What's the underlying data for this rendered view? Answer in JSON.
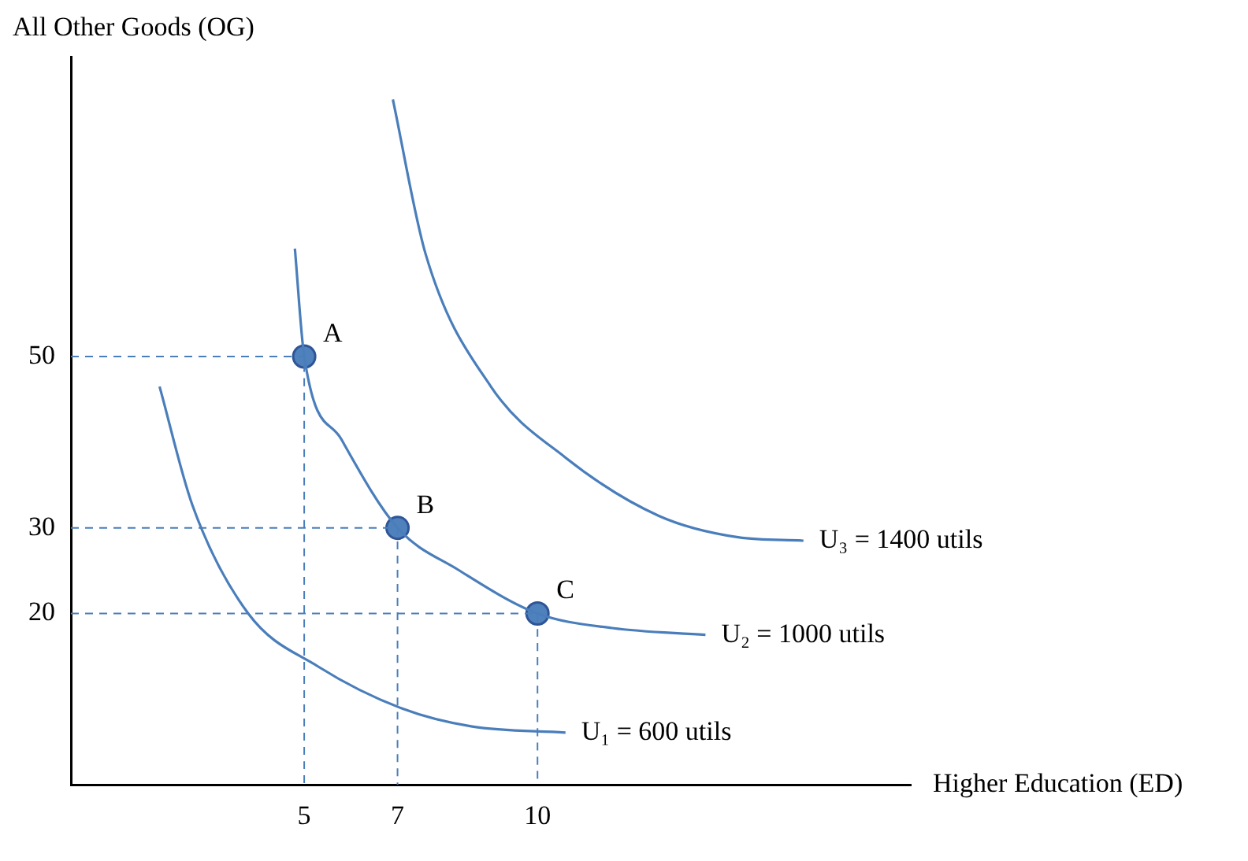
{
  "chart_data": {
    "type": "line",
    "xlabel": "Higher Education (ED)",
    "ylabel": "All Other Goods (OG)",
    "xlim": [
      0,
      18
    ],
    "xticks": [
      5,
      7,
      10
    ],
    "ylim": [
      0,
      85
    ],
    "yticks": [
      20,
      30,
      50
    ],
    "grid": false,
    "legend": false,
    "series": [
      {
        "name": "U₁ = 600 utils",
        "color": "#4a7ebb",
        "marker": "none",
        "line_style": "solid",
        "x": [
          1.9,
          2.6,
          3.8,
          5.3,
          7.1,
          8.6,
          10.6
        ],
        "values": [
          46.5,
          32.7,
          20,
          13.8,
          8.9,
          6.8,
          6.1
        ]
      },
      {
        "name": "U₂ = 1000 utils",
        "color": "#4a7ebb",
        "marker": "none",
        "line_style": "solid",
        "x": [
          4.8,
          5,
          5.8,
          7,
          8.3,
          10,
          11.6,
          13.6
        ],
        "values": [
          62.6,
          50,
          40.3,
          30,
          25.1,
          20,
          18.3,
          17.5
        ]
      },
      {
        "name": "U₃ = 1400 utils",
        "color": "#4a7ebb",
        "marker": "none",
        "line_style": "solid",
        "x": [
          6.9,
          7.6,
          9,
          10.6,
          12.6,
          14.3,
          15.7
        ],
        "values": [
          80,
          62,
          46.5,
          38.2,
          31.4,
          28.9,
          28.5
        ]
      },
      {
        "color": "#4a7ebb",
        "marker": "none",
        "line_style": "dashed",
        "x": [
          0,
          5,
          5
        ],
        "values": [
          50,
          50,
          0
        ]
      },
      {
        "color": "#4a7ebb",
        "marker": "none",
        "line_style": "dashed",
        "x": [
          0,
          7,
          7
        ],
        "values": [
          30,
          30,
          0
        ]
      },
      {
        "color": "#4a7ebb",
        "marker": "none",
        "line_style": "dashed",
        "x": [
          0,
          10,
          10
        ],
        "values": [
          20,
          20,
          0
        ]
      },
      {
        "type": "scatter",
        "color": "#4f81bd",
        "marker": "circle",
        "x": [
          5,
          7,
          10
        ],
        "values": [
          50,
          30,
          20
        ]
      }
    ],
    "annotations": [
      {
        "text": "A",
        "x": 5,
        "y": 50
      },
      {
        "text": "B",
        "x": 7,
        "y": 30
      },
      {
        "text": "C",
        "x": 10,
        "y": 20
      }
    ]
  }
}
